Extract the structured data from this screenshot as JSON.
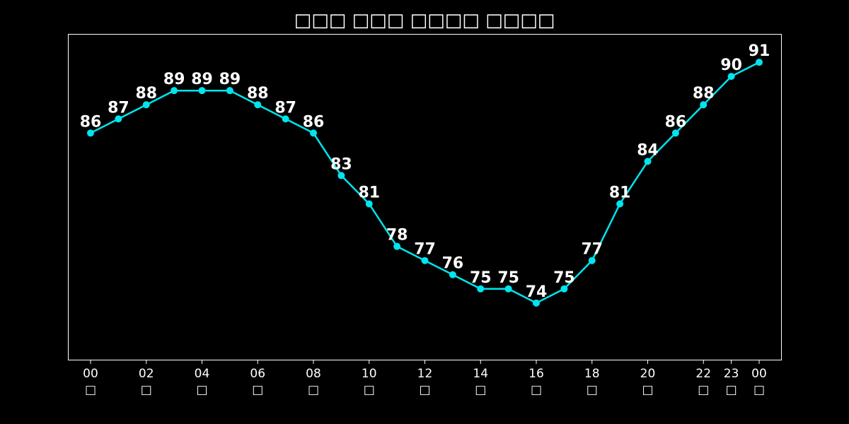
{
  "chart_data": {
    "type": "line",
    "title": "□□□ □□□ □□□□ □□□□",
    "xlabel": "",
    "ylabel": "",
    "grid": false,
    "legend": "none",
    "ylim": [
      70,
      93
    ],
    "colors": {
      "background": "#000000",
      "line": "#00e5ee",
      "text": "#ffffff",
      "frame": "#ffffff"
    },
    "series": [
      {
        "values": [
          86,
          87,
          88,
          89,
          89,
          89,
          88,
          87,
          86,
          83,
          81,
          78,
          77,
          76,
          75,
          75,
          74,
          75,
          77,
          81,
          84,
          86,
          88,
          90,
          91
        ]
      }
    ],
    "x_ticks": [
      {
        "index": 0,
        "line1": "00",
        "line2": "□"
      },
      {
        "index": 2,
        "line1": "02",
        "line2": "□"
      },
      {
        "index": 4,
        "line1": "04",
        "line2": "□"
      },
      {
        "index": 6,
        "line1": "06",
        "line2": "□"
      },
      {
        "index": 8,
        "line1": "08",
        "line2": "□"
      },
      {
        "index": 10,
        "line1": "10",
        "line2": "□"
      },
      {
        "index": 12,
        "line1": "12",
        "line2": "□"
      },
      {
        "index": 14,
        "line1": "14",
        "line2": "□"
      },
      {
        "index": 16,
        "line1": "16",
        "line2": "□"
      },
      {
        "index": 18,
        "line1": "18",
        "line2": "□"
      },
      {
        "index": 20,
        "line1": "20",
        "line2": "□"
      },
      {
        "index": 22,
        "line1": "22",
        "line2": "□"
      },
      {
        "index": 23,
        "line1": "23",
        "line2": "□"
      },
      {
        "index": 24,
        "line1": "00",
        "line2": "□"
      }
    ]
  }
}
